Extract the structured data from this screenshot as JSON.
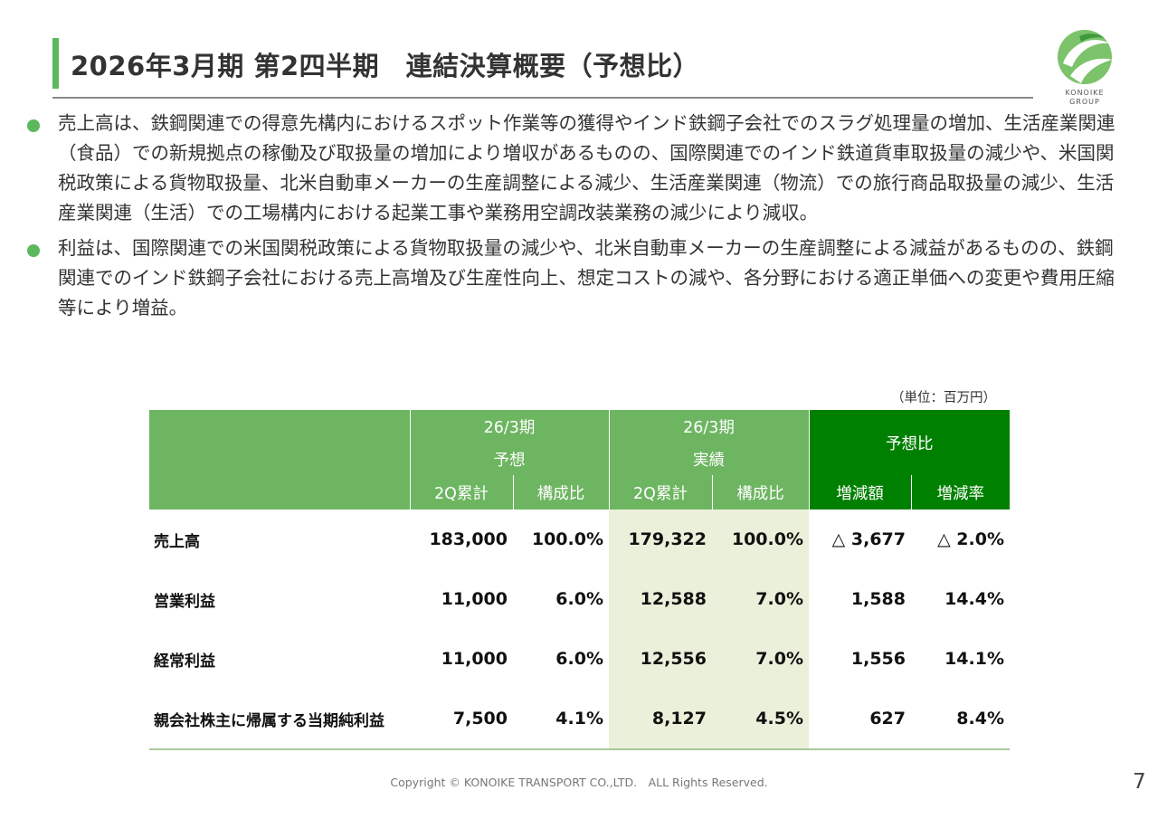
{
  "header": {
    "title": "2026年3月期 第2四半期　連結決算概要（予想比）",
    "logo_text_1": "KONOIKE",
    "logo_text_2": "GROUP"
  },
  "bullets": [
    "売上高は、鉄鋼関連での得意先構内におけるスポット作業等の獲得やインド鉄鋼子会社でのスラグ処理量の増加、生活産業関連（食品）での新規拠点の稼働及び取扱量の増加により増収があるものの、国際関連でのインド鉄道貨車取扱量の減少や、米国関税政策による貨物取扱量、北米自動車メーカーの生産調整による減少、生活産業関連（物流）での旅行商品取扱量の減少、生活産業関連（生活）での工場構内における起業工事や業務用空調改装業務の減少により減収。",
    "利益は、国際関連での米国関税政策による貨物取扱量の減少や、北米自動車メーカーの生産調整による減益があるものの、鉄鋼関連でのインド鉄鋼子会社における売上高増及び生産性向上、想定コストの減や、各分野における適正単価への変更や費用圧縮等により増益。"
  ],
  "table": {
    "unit": "（単位：百万円）",
    "headers": {
      "forecast_top": "26/3期",
      "forecast_sub": "予想",
      "actual_top": "26/3期",
      "actual_sub": "実績",
      "vs_forecast": "予想比",
      "cum_2q_a": "2Q累計",
      "ratio_a": "構成比",
      "cum_2q_b": "2Q累計",
      "ratio_b": "構成比",
      "change_amount": "増減額",
      "change_rate": "増減率"
    },
    "rows": [
      {
        "label": "売上高",
        "forecast": "183,000",
        "forecast_ratio": "100.0%",
        "actual": "179,322",
        "actual_ratio": "100.0%",
        "change": "△ 3,677",
        "rate": "△ 2.0%"
      },
      {
        "label": "営業利益",
        "forecast": "11,000",
        "forecast_ratio": "6.0%",
        "actual": "12,588",
        "actual_ratio": "7.0%",
        "change": "1,588",
        "rate": "14.4%"
      },
      {
        "label": "経常利益",
        "forecast": "11,000",
        "forecast_ratio": "6.0%",
        "actual": "12,556",
        "actual_ratio": "7.0%",
        "change": "1,556",
        "rate": "14.1%"
      },
      {
        "label": "親会社株主に帰属する当期純利益",
        "forecast": "7,500",
        "forecast_ratio": "4.1%",
        "actual": "8,127",
        "actual_ratio": "4.5%",
        "change": "627",
        "rate": "8.4%"
      }
    ]
  },
  "footer": {
    "copyright": "Copyright © KONOIKE TRANSPORT CO.,LTD.　ALL Rights Reserved.",
    "page": "7"
  },
  "colors": {
    "accent_green": "#5cb85c",
    "header_green": "#6db561",
    "dark_green": "#008000",
    "highlight": "#ebf0da"
  }
}
